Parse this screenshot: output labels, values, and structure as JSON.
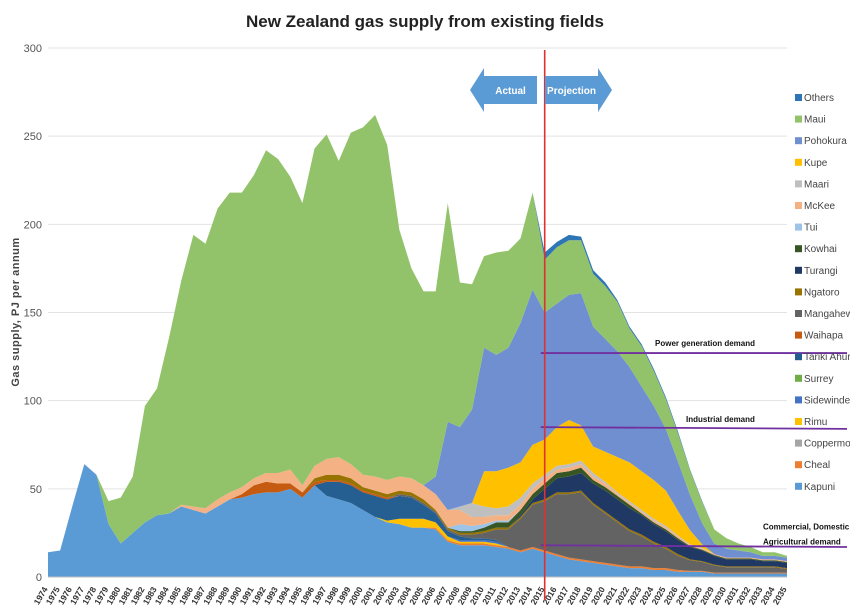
{
  "chart_data": {
    "type": "area",
    "stacked": true,
    "title": "New Zealand gas supply from existing fields",
    "ylabel": "Gas supply, PJ per annum",
    "xlabel": "",
    "ylim": [
      0,
      300
    ],
    "yticks": [
      0,
      50,
      100,
      150,
      200,
      250,
      300
    ],
    "grid": true,
    "legend_position": "right",
    "x": [
      1974,
      1975,
      1976,
      1977,
      1978,
      1979,
      1980,
      1981,
      1982,
      1983,
      1984,
      1985,
      1986,
      1987,
      1988,
      1989,
      1990,
      1991,
      1992,
      1993,
      1994,
      1995,
      1996,
      1997,
      1998,
      1999,
      2000,
      2001,
      2002,
      2003,
      2004,
      2005,
      2006,
      2007,
      2008,
      2009,
      2010,
      2011,
      2012,
      2013,
      2014,
      2015,
      2016,
      2017,
      2018,
      2019,
      2020,
      2021,
      2022,
      2023,
      2024,
      2025,
      2026,
      2027,
      2028,
      2029,
      2030,
      2031,
      2032,
      2033,
      2034,
      2035
    ],
    "series": [
      {
        "name": "Kapuni",
        "color": "#5b9bd5",
        "values": [
          14,
          15,
          40,
          64,
          58,
          30,
          19,
          25,
          31,
          35,
          36,
          40,
          38,
          36,
          40,
          44,
          45,
          47,
          48,
          48,
          50,
          45,
          52,
          46,
          44,
          42,
          38,
          34,
          31,
          30,
          28,
          28,
          27,
          20,
          18,
          18,
          18,
          17,
          16,
          14,
          16,
          14,
          12,
          10,
          9,
          8,
          7,
          6,
          5,
          5,
          4,
          4,
          3,
          3,
          3,
          2,
          2,
          2,
          2,
          2,
          2,
          2
        ]
      },
      {
        "name": "Cheal",
        "color": "#ed7d31",
        "values": [
          0,
          0,
          0,
          0,
          0,
          0,
          0,
          0,
          0,
          0,
          0,
          0,
          0,
          0,
          0,
          0,
          0,
          0,
          0,
          0,
          0,
          0,
          0,
          0,
          0,
          0,
          0,
          0,
          0,
          0,
          0,
          0,
          1,
          1,
          1,
          1,
          1,
          1,
          1,
          1,
          1,
          1,
          1,
          1,
          1,
          1,
          1,
          1,
          1,
          1,
          1,
          1,
          1,
          0.5,
          0.5,
          0.5,
          0.5,
          0.5,
          0.5,
          0.5,
          0.5,
          0.5
        ]
      },
      {
        "name": "Coppermoki",
        "color": "#a5a5a5",
        "values": [
          0,
          0,
          0,
          0,
          0,
          0,
          0,
          0,
          0,
          0,
          0,
          0,
          0,
          0,
          0,
          0,
          0,
          0,
          0,
          0,
          0,
          0,
          0,
          0,
          0,
          0,
          0,
          0,
          0,
          0,
          0,
          0,
          0,
          0,
          0,
          0,
          0,
          0,
          0,
          0,
          0,
          0,
          0,
          0,
          0,
          0,
          0,
          0,
          0,
          0,
          0,
          0,
          0,
          0,
          0,
          0,
          0,
          0,
          0,
          0,
          0,
          0
        ]
      },
      {
        "name": "Rimu",
        "color": "#ffc000",
        "values": [
          0,
          0,
          0,
          0,
          0,
          0,
          0,
          0,
          0,
          0,
          0,
          0,
          0,
          0,
          0,
          0,
          0,
          0,
          0,
          0,
          0,
          0,
          0,
          0,
          0,
          0,
          0,
          0,
          1,
          3,
          5,
          5,
          3,
          2,
          1,
          1,
          1,
          1,
          0,
          0,
          0,
          0,
          0,
          0,
          0,
          0,
          0,
          0,
          0,
          0,
          0,
          0,
          0,
          0,
          0,
          0,
          0,
          0,
          0,
          0,
          0,
          0
        ]
      },
      {
        "name": "Sidewinder",
        "color": "#4472c4",
        "values": [
          0,
          0,
          0,
          0,
          0,
          0,
          0,
          0,
          0,
          0,
          0,
          0,
          0,
          0,
          0,
          0,
          0,
          0,
          0,
          0,
          0,
          0,
          0,
          0,
          0,
          0,
          0,
          0,
          0,
          0,
          0,
          0,
          0,
          0,
          1,
          1,
          1,
          1,
          0,
          0,
          0,
          0,
          0,
          0,
          0,
          0,
          0,
          0,
          0,
          0,
          0,
          0,
          0,
          0,
          0,
          0,
          0,
          0,
          0,
          0,
          0,
          0
        ]
      },
      {
        "name": "Surrey",
        "color": "#70ad47",
        "values": [
          0,
          0,
          0,
          0,
          0,
          0,
          0,
          0,
          0,
          0,
          0,
          0,
          0,
          0,
          0,
          0,
          0,
          0,
          0,
          0,
          0,
          0,
          0,
          0,
          0,
          0,
          0,
          0,
          0,
          0,
          0,
          0,
          0,
          0,
          0,
          0,
          0,
          0,
          0,
          0,
          0,
          0,
          0,
          0,
          0,
          0,
          0,
          0,
          0,
          0,
          0,
          0,
          0,
          0,
          0,
          0,
          0,
          0,
          0,
          0,
          0,
          0
        ]
      },
      {
        "name": "Tariki Ahuroa",
        "color": "#255e91",
        "values": [
          0,
          0,
          0,
          0,
          0,
          0,
          0,
          0,
          0,
          0,
          0,
          0,
          0,
          0,
          0,
          0,
          0,
          0,
          0,
          0,
          0,
          0,
          0,
          8,
          10,
          10,
          10,
          12,
          12,
          13,
          12,
          8,
          5,
          3,
          2,
          1,
          1,
          1,
          0,
          0,
          0,
          0,
          0,
          0,
          0,
          0,
          0,
          0,
          0,
          0,
          0,
          0,
          0,
          0,
          0,
          0,
          0,
          0,
          0,
          0,
          0,
          0
        ]
      },
      {
        "name": "Waihapa",
        "color": "#c55a11",
        "values": [
          0,
          0,
          0,
          0,
          0,
          0,
          0,
          0,
          0,
          0,
          0,
          0,
          0,
          0,
          0,
          0,
          2,
          5,
          6,
          5,
          3,
          3,
          2,
          1,
          1,
          1,
          1,
          1,
          1,
          0,
          0,
          0,
          0,
          0,
          0,
          0,
          0,
          0,
          0,
          0,
          0,
          0,
          0,
          0,
          0,
          0,
          0,
          0,
          0,
          0,
          0,
          0,
          0,
          0,
          0,
          0,
          0,
          0,
          0,
          0,
          0,
          0
        ]
      },
      {
        "name": "Mangahewa",
        "color": "#636363",
        "values": [
          0,
          0,
          0,
          0,
          0,
          0,
          0,
          0,
          0,
          0,
          0,
          0,
          0,
          0,
          0,
          0,
          0,
          0,
          0,
          0,
          0,
          0,
          0,
          0,
          0,
          0,
          0,
          0,
          0,
          1,
          1,
          1,
          1,
          1,
          1,
          2,
          3,
          6,
          10,
          18,
          24,
          28,
          34,
          36,
          38,
          32,
          28,
          24,
          20,
          17,
          14,
          11,
          8,
          6,
          5,
          4,
          3,
          3,
          3,
          3,
          3,
          2
        ]
      },
      {
        "name": "Ngatoro",
        "color": "#997300",
        "values": [
          0,
          0,
          0,
          0,
          0,
          0,
          0,
          0,
          0,
          0,
          0,
          0,
          0,
          0,
          0,
          0,
          0,
          0,
          0,
          0,
          0,
          0,
          2,
          3,
          3,
          3,
          2,
          2,
          2,
          2,
          2,
          2,
          1,
          1,
          1,
          1,
          1,
          1,
          1,
          1,
          1,
          1,
          1,
          1,
          1,
          1,
          1,
          1,
          1,
          1,
          1,
          1,
          1,
          0.5,
          0.5,
          0.5,
          0.5,
          0.5,
          0.5,
          0.5,
          0.5,
          0.5
        ]
      },
      {
        "name": "Turangi",
        "color": "#203864",
        "values": [
          0,
          0,
          0,
          0,
          0,
          0,
          0,
          0,
          0,
          0,
          0,
          0,
          0,
          0,
          0,
          0,
          0,
          0,
          0,
          0,
          0,
          0,
          0,
          0,
          0,
          0,
          0,
          0,
          0,
          0,
          0,
          0,
          0,
          0,
          0,
          0,
          0,
          0,
          0,
          1,
          2,
          6,
          8,
          9,
          10,
          11,
          12,
          12,
          12,
          11,
          10,
          9,
          8,
          7,
          6,
          5,
          4,
          4,
          4,
          3,
          3,
          3
        ]
      },
      {
        "name": "Kowhai",
        "color": "#375623",
        "values": [
          0,
          0,
          0,
          0,
          0,
          0,
          0,
          0,
          0,
          0,
          0,
          0,
          0,
          0,
          0,
          0,
          0,
          0,
          0,
          0,
          0,
          0,
          0,
          0,
          0,
          0,
          0,
          0,
          0,
          0,
          0,
          0,
          0,
          0,
          1,
          1,
          2,
          3,
          3,
          3,
          3,
          3,
          3,
          3,
          3,
          2,
          2,
          2,
          2,
          1,
          1,
          1,
          1,
          0.5,
          0.5,
          0.5,
          0.5,
          0.5,
          0.5,
          0.5,
          0.5,
          0.5
        ]
      },
      {
        "name": "Tui",
        "color": "#9dc3e6",
        "values": [
          0,
          0,
          0,
          0,
          0,
          0,
          0,
          0,
          0,
          0,
          0,
          0,
          0,
          0,
          0,
          0,
          0,
          0,
          0,
          0,
          0,
          0,
          0,
          0,
          0,
          0,
          0,
          0,
          0,
          0,
          0,
          0,
          0,
          0,
          4,
          3,
          2,
          1,
          1,
          0,
          0,
          0,
          0,
          0,
          0,
          0,
          0,
          0,
          0,
          0,
          0,
          0,
          0,
          0,
          0,
          0,
          0,
          0,
          0,
          0,
          0,
          0
        ]
      },
      {
        "name": "McKee",
        "color": "#f4b183",
        "values": [
          0,
          0,
          0,
          0,
          0,
          0,
          0,
          0,
          0,
          0,
          0,
          1,
          2,
          3,
          4,
          4,
          4,
          4,
          5,
          6,
          8,
          4,
          7,
          9,
          10,
          8,
          7,
          8,
          8,
          8,
          8,
          8,
          9,
          10,
          8,
          5,
          4,
          3,
          3,
          3,
          3,
          3,
          2,
          2,
          2,
          2,
          2,
          1,
          1,
          1,
          1,
          1,
          1,
          0.5,
          0.5,
          0.5,
          0.5,
          0.5,
          0.5,
          0.5,
          0.5,
          0.5
        ]
      },
      {
        "name": "Maari",
        "color": "#bfbfbf",
        "values": [
          0,
          0,
          0,
          0,
          0,
          0,
          0,
          0,
          0,
          0,
          0,
          0,
          0,
          0,
          0,
          0,
          0,
          0,
          0,
          0,
          0,
          0,
          0,
          0,
          0,
          0,
          0,
          0,
          0,
          0,
          0,
          0,
          0,
          0,
          2,
          8,
          6,
          4,
          5,
          4,
          3,
          2,
          2,
          2,
          2,
          2,
          1,
          1,
          1,
          1,
          1,
          1,
          0.5,
          0.5,
          0.5,
          0,
          0,
          0,
          0,
          0,
          0,
          0
        ]
      },
      {
        "name": "Kupe",
        "color": "#ffc000",
        "values": [
          0,
          0,
          0,
          0,
          0,
          0,
          0,
          0,
          0,
          0,
          0,
          0,
          0,
          0,
          0,
          0,
          0,
          0,
          0,
          0,
          0,
          0,
          0,
          0,
          0,
          0,
          0,
          0,
          0,
          0,
          0,
          0,
          0,
          0,
          0,
          0,
          20,
          21,
          22,
          20,
          22,
          20,
          22,
          25,
          20,
          15,
          17,
          20,
          22,
          22,
          22,
          20,
          14,
          8,
          2,
          0,
          0,
          0,
          0,
          0,
          0,
          0
        ]
      },
      {
        "name": "Pohokura",
        "color": "#6f8fd0",
        "values": [
          0,
          0,
          0,
          0,
          0,
          0,
          0,
          0,
          0,
          0,
          0,
          0,
          0,
          0,
          0,
          0,
          0,
          0,
          0,
          0,
          0,
          0,
          0,
          0,
          0,
          0,
          0,
          0,
          0,
          0,
          0,
          0,
          10,
          50,
          45,
          53,
          70,
          66,
          68,
          79,
          88,
          72,
          70,
          71,
          75,
          68,
          64,
          60,
          54,
          48,
          42,
          35,
          28,
          20,
          12,
          6,
          5,
          4,
          3,
          2,
          2,
          2
        ]
      },
      {
        "name": "Maui",
        "color": "#92c36a",
        "values": [
          0,
          0,
          0,
          0,
          0,
          13,
          26,
          32,
          66,
          72,
          100,
          127,
          154,
          150,
          165,
          170,
          167,
          172,
          183,
          178,
          166,
          160,
          180,
          184,
          168,
          188,
          197,
          205,
          190,
          140,
          119,
          110,
          105,
          124,
          82,
          71,
          52,
          58,
          55,
          48,
          55,
          30,
          32,
          31,
          30,
          30,
          30,
          28,
          22,
          23,
          20,
          17,
          16,
          14,
          12,
          8,
          6,
          4,
          3,
          2,
          2,
          1
        ]
      },
      {
        "name": "Others",
        "color": "#2e75b6",
        "values": [
          0,
          0,
          0,
          0,
          0,
          0,
          0,
          0,
          0,
          0,
          0,
          0,
          0,
          0,
          0,
          0,
          0,
          0,
          0,
          0,
          0,
          0,
          0,
          0,
          0,
          0,
          0,
          0,
          0,
          0,
          0,
          0,
          0,
          0,
          0,
          0,
          0,
          0,
          0,
          0,
          0,
          4,
          3,
          3,
          2,
          2,
          2,
          1,
          1,
          1,
          1,
          1,
          1,
          0.5,
          0.5,
          0,
          0,
          0,
          0,
          0,
          0,
          0
        ]
      }
    ],
    "legend_order": [
      "Others",
      "Maui",
      "Pohokura",
      "Kupe",
      "Maari",
      "McKee",
      "Tui",
      "Kowhai",
      "Turangi",
      "Ngatoro",
      "Mangahewa",
      "Waihapa",
      "Tariki Ahuroa",
      "Surrey",
      "Sidewinder",
      "Rimu",
      "Coppermoki",
      "Cheal",
      "Kapuni"
    ],
    "divider_year": 2015,
    "divider_color": "#e03030",
    "arrows": {
      "actual": "Actual",
      "projection": "Projection",
      "color": "#5b9bd5"
    },
    "demand_lines": [
      {
        "label": "Power generation demand",
        "start_value": 127,
        "end_value": 127,
        "color": "#7030a0"
      },
      {
        "label": "Industrial demand",
        "start_value": 85,
        "end_value": 84,
        "color": "#7030a0"
      },
      {
        "label": "Commercial, Domestic & Agricultural demand",
        "start_value": 18,
        "end_value": 17,
        "color": "#7030a0"
      }
    ]
  }
}
